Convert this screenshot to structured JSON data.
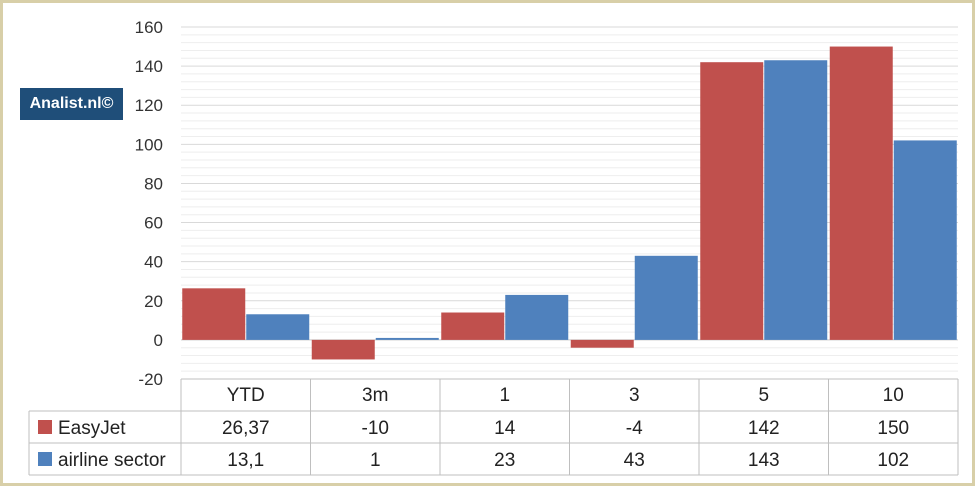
{
  "brand": {
    "label": "Analist.nl©"
  },
  "colors": {
    "easyjet": "#c0504d",
    "sector": "#4f81bd",
    "grid": "#d9d9d9",
    "table_border": "#bfbfbf"
  },
  "chart_data": {
    "type": "bar",
    "title": "",
    "xlabel": "",
    "ylabel": "",
    "ylim": [
      -20,
      160
    ],
    "yticks": [
      -20,
      0,
      20,
      40,
      60,
      80,
      100,
      120,
      140,
      160
    ],
    "grid": true,
    "legend": "data-table",
    "categories": [
      "YTD",
      "3m",
      "1",
      "3",
      "5",
      "10"
    ],
    "series": [
      {
        "name": "EasyJet",
        "values": [
          26.37,
          -10,
          14,
          -4,
          142,
          150
        ],
        "labels": [
          "26,37",
          "-10",
          "14",
          "-4",
          "142",
          "150"
        ]
      },
      {
        "name": "airline sector",
        "values": [
          13.1,
          1,
          23,
          43,
          143,
          102
        ],
        "labels": [
          "13,1",
          "1",
          "23",
          "43",
          "143",
          "102"
        ]
      }
    ]
  }
}
